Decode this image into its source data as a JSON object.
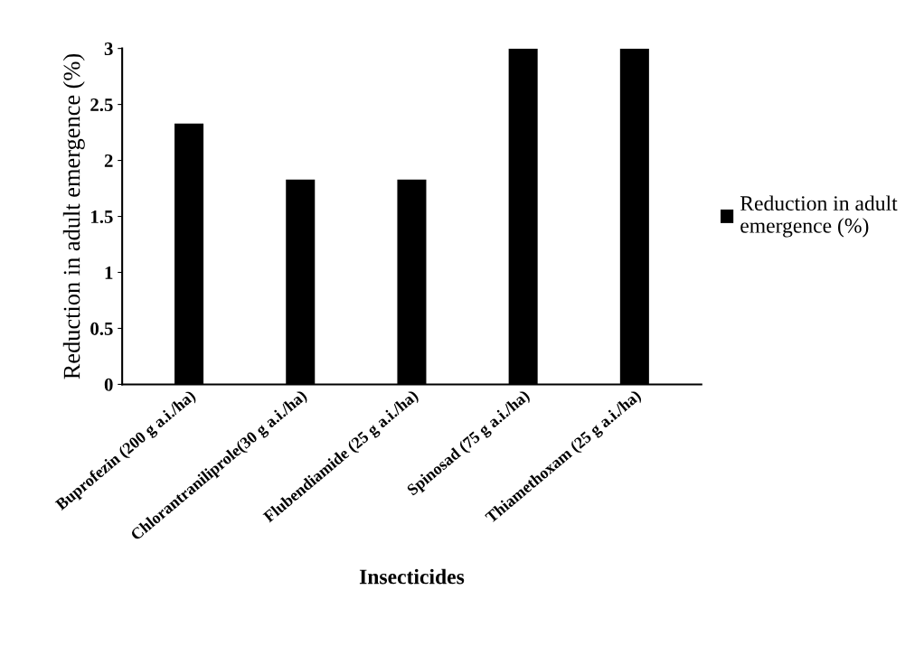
{
  "chart_data": {
    "type": "bar",
    "xlabel": "Insecticides",
    "ylabel": "Reduction in adult emergence (%)",
    "categories": [
      "Buprofezin (200 g a.i./ha)",
      "Chlorantraniliprole(30 g a.i./ha)",
      "Flubendiamide (25 g a.i./ha)",
      "Spinosad (75 g a.i./ha)",
      "Thiamethoxam (25 g a.i./ha)"
    ],
    "series": [
      {
        "name": "Reduction in adult\nemergence (%)",
        "color": "#000000",
        "values": [
          2.33,
          1.83,
          1.83,
          3,
          3
        ]
      }
    ],
    "ylim": [
      0,
      3
    ],
    "yticks": [
      0,
      0.5,
      1,
      1.5,
      2,
      2.5,
      3
    ],
    "grid": false,
    "legend": "right"
  }
}
